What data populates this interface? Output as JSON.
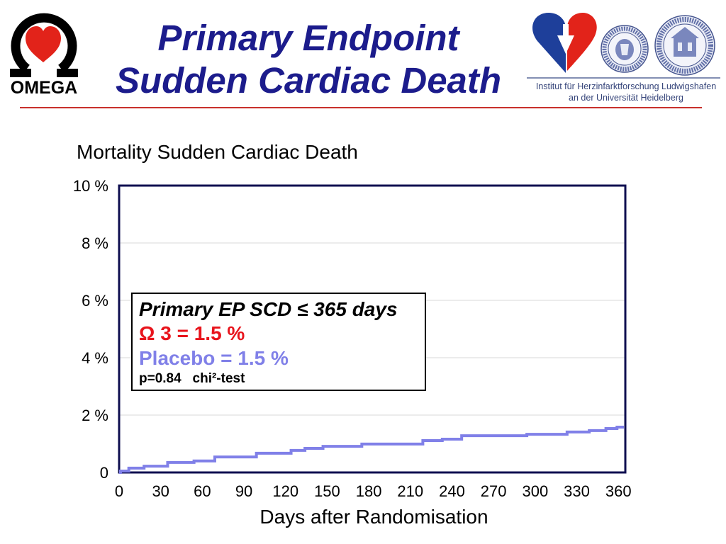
{
  "slide": {
    "title_line1": "Primary Endpoint",
    "title_line2": "Sudden Cardiac Death"
  },
  "header_logos": {
    "left_logo_icon": "omega-heart-logo",
    "left_logo_text": "OMEGA",
    "right_logo_icons": [
      "institute-heart-logo",
      "seal-icon",
      "seal-icon"
    ],
    "institute_line1": "Institut für Herzinfarktforschung Ludwigshafen",
    "institute_line2": "an der Universität Heidelberg"
  },
  "colors": {
    "title": "#1c1c8c",
    "accent_rule": "#c8302c",
    "plot_frame": "#0f0f50",
    "omega3": "#e8141c",
    "placebo": "#8080e8",
    "logo_red": "#e2231a",
    "logo_blue": "#1e3f9a",
    "institute_text": "#36457a"
  },
  "annotation": {
    "heading": "Primary EP SCD ≤ 365 days",
    "omega3_result": "Ω 3 = 1.5 %",
    "placebo_result": "= 1.5 %",
    "stats": "p=0.84   chi²-test"
  },
  "chart_data": {
    "type": "line",
    "step": true,
    "title": "Mortality Sudden Cardiac Death",
    "xlabel": "Days after Randomisation",
    "xlim": [
      0,
      365
    ],
    "ylim": [
      0,
      10
    ],
    "xticks": [
      0,
      30,
      60,
      90,
      120,
      150,
      180,
      210,
      240,
      270,
      300,
      330,
      360
    ],
    "yticks": [
      0,
      2,
      4,
      6,
      8,
      10
    ],
    "ytick_labels": [
      "0",
      "2 %",
      "4 %",
      "6 %",
      "8 %",
      "10 %"
    ],
    "grid": true,
    "legend": "center-left",
    "series": [
      {
        "name": "Placebo",
        "color": "#8080e8",
        "x": [
          0,
          1,
          7,
          18,
          35,
          54,
          69,
          99,
          124,
          134,
          147,
          175,
          219,
          233,
          247,
          294,
          323,
          339,
          351,
          359,
          364
        ],
        "y": [
          0,
          0.05,
          0.15,
          0.22,
          0.35,
          0.4,
          0.54,
          0.67,
          0.77,
          0.84,
          0.91,
          0.99,
          1.11,
          1.16,
          1.28,
          1.33,
          1.41,
          1.46,
          1.53,
          1.58,
          1.58
        ]
      }
    ]
  }
}
